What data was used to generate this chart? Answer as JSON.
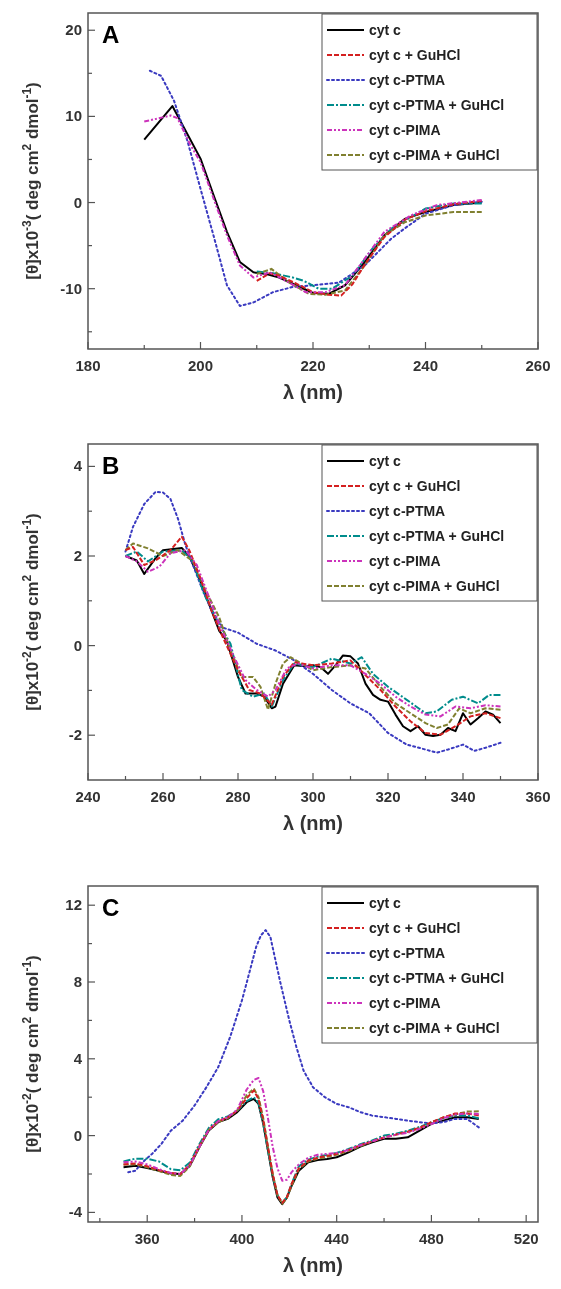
{
  "chart_data": [
    {
      "type": "line",
      "title": "A",
      "xlabel": "λ (nm)",
      "ylabel": "[θ]x10$^{-3}$( deg cm$^{2}$ dmol$^{-1}$)",
      "xlim": [
        180,
        260
      ],
      "ylim": [
        -17,
        22
      ],
      "xticks": [
        180,
        {
          "value": 190,
          "label": null
        },
        200,
        {
          "value": 210,
          "label": null
        },
        220,
        {
          "value": 230,
          "label": null
        },
        240,
        {
          "value": 250,
          "label": null
        },
        260
      ],
      "yticks": [
        {
          "value": -15,
          "label": null
        },
        -10,
        {
          "value": -5,
          "label": null
        },
        0,
        {
          "value": 5,
          "label": null
        },
        10,
        {
          "value": 15,
          "label": null
        },
        20
      ],
      "legend": "top right",
      "series": [
        {
          "name": "cyt c",
          "color": "#000000",
          "line_style": "solid",
          "x": [
            190,
            195,
            200,
            202.3,
            204.7,
            207,
            209.4,
            211.7,
            214,
            217,
            220,
            222.8,
            225.7,
            229.2,
            232.7,
            236.3,
            240,
            245,
            250
          ],
          "values": [
            7.3,
            11.2,
            5.1,
            0.9,
            -3.4,
            -6.9,
            -8.1,
            -8.3,
            -8.7,
            -9.6,
            -10.5,
            -10.6,
            -9.6,
            -6.9,
            -3.8,
            -1.9,
            -1.1,
            -0.3,
            0
          ]
        },
        {
          "name": "cyt c + GuHCl",
          "color": "#d42020",
          "line_style": "dashed",
          "x": [
            210,
            212.3,
            214,
            217,
            220,
            222.8,
            225,
            227,
            229.2,
            232.7,
            236.3,
            240,
            245,
            250
          ],
          "values": [
            -9.1,
            -8.2,
            -8.5,
            -9.4,
            -10.4,
            -10.7,
            -10.8,
            -9.5,
            -7.2,
            -4.0,
            -2.0,
            -1.0,
            -0.2,
            0.2
          ]
        },
        {
          "name": "cyt c-PTMA",
          "color": "#3a3ac0",
          "line_style": "dotted",
          "x": [
            191,
            193,
            195.3,
            197.7,
            200,
            202.3,
            204.7,
            207,
            209.4,
            212.9,
            216.4,
            220,
            224.6,
            229.2,
            233.9,
            236.3,
            240,
            245,
            250
          ],
          "values": [
            15.3,
            14.7,
            11.8,
            7.1,
            1.6,
            -3.8,
            -9.6,
            -12.0,
            -11.6,
            -10.4,
            -9.8,
            -9.6,
            -9.3,
            -7.3,
            -4.2,
            -3.0,
            -1.3,
            -0.3,
            0.1
          ]
        },
        {
          "name": "cyt c-PTMA + GuHCl",
          "color": "#008c8c",
          "line_style": "dashdot",
          "x": [
            210,
            212.9,
            216.4,
            218.4,
            221,
            223.4,
            227,
            230.5,
            234,
            240,
            245,
            250
          ],
          "values": [
            -8.0,
            -8.2,
            -8.7,
            -9.1,
            -10.0,
            -10.0,
            -8.5,
            -5.4,
            -3.0,
            -0.7,
            -0.1,
            -0.1
          ]
        },
        {
          "name": "cyt c-PIMA",
          "color": "#cc33bb",
          "line_style": "dashdotdot",
          "x": [
            190,
            194.7,
            195.9,
            198.2,
            200,
            202.3,
            204.7,
            207,
            209.4,
            212.3,
            215.2,
            218.7,
            222.2,
            225.7,
            229.2,
            232.7,
            237.4,
            242,
            250
          ],
          "values": [
            9.4,
            10.1,
            9.8,
            6.7,
            4.7,
            0.5,
            -3.8,
            -7.3,
            -8.7,
            -8.1,
            -9.1,
            -10.4,
            -10.4,
            -9.6,
            -6.5,
            -3.4,
            -1.5,
            -0.3,
            0.3
          ]
        },
        {
          "name": "cyt c-PIMA + GuHCl",
          "color": "#808030",
          "line_style": "dashed",
          "x": [
            210,
            212.6,
            215.8,
            219.3,
            222.2,
            225.7,
            229.2,
            232.7,
            236.3,
            240,
            245,
            250
          ],
          "values": [
            -8.3,
            -7.7,
            -9.3,
            -10.6,
            -10.7,
            -10.2,
            -7.3,
            -3.8,
            -2.3,
            -1.5,
            -1.1,
            -1.1
          ]
        }
      ]
    },
    {
      "type": "line",
      "title": "B",
      "xlabel": "λ (nm)",
      "ylabel": "[θ]x10$^{-2}$( deg cm$^{2}$ dmol$^{-1}$)",
      "xlim": [
        240,
        360
      ],
      "ylim": [
        -3,
        4.5
      ],
      "xticks": [
        240,
        {
          "value": 250,
          "label": null
        },
        260,
        {
          "value": 270,
          "label": null
        },
        280,
        {
          "value": 290,
          "label": null
        },
        300,
        {
          "value": 310,
          "label": null
        },
        320,
        {
          "value": 330,
          "label": null
        },
        340,
        {
          "value": 350,
          "label": null
        },
        360
      ],
      "yticks": [
        -2,
        {
          "value": -1,
          "label": null
        },
        0,
        {
          "value": 1,
          "label": null
        },
        2,
        {
          "value": 3,
          "label": null
        },
        4
      ],
      "legend": "top right",
      "series": [
        {
          "name": "cyt c",
          "color": "#000000",
          "line_style": "solid",
          "x": [
            250,
            253,
            255,
            258,
            260,
            265,
            267,
            270,
            273,
            275,
            277,
            280,
            282,
            285,
            287,
            289,
            290,
            292,
            295,
            298,
            300,
            302,
            304,
            306,
            308,
            310,
            312,
            314,
            316,
            318,
            320,
            322,
            324,
            326,
            328,
            330,
            332,
            334,
            336,
            338,
            340,
            342,
            344,
            346,
            348,
            350
          ],
          "values": [
            2.0,
            1.9,
            1.6,
            1.95,
            2.13,
            2.18,
            2.0,
            1.43,
            0.77,
            0.33,
            0.11,
            -0.7,
            -1.07,
            -1.07,
            -1.14,
            -1.4,
            -1.36,
            -0.85,
            -0.44,
            -0.46,
            -0.44,
            -0.48,
            -0.63,
            -0.44,
            -0.22,
            -0.24,
            -0.4,
            -0.85,
            -1.1,
            -1.21,
            -1.25,
            -1.54,
            -1.8,
            -1.91,
            -1.8,
            -1.99,
            -2.02,
            -1.99,
            -1.84,
            -1.91,
            -1.51,
            -1.76,
            -1.62,
            -1.47,
            -1.54,
            -1.73
          ]
        },
        {
          "name": "cyt c + GuHCl",
          "color": "#d42020",
          "line_style": "dashed",
          "x": [
            250,
            252,
            255,
            258,
            262,
            265,
            267,
            270,
            273,
            276,
            280,
            283,
            286,
            289,
            292,
            295,
            300,
            305,
            310,
            314,
            318,
            322,
            326,
            330,
            334,
            338,
            342,
            346,
            350
          ],
          "values": [
            2.13,
            2.2,
            1.8,
            1.9,
            2.13,
            2.43,
            2.13,
            1.5,
            0.77,
            0.18,
            -0.55,
            -0.99,
            -1.07,
            -1.32,
            -0.7,
            -0.37,
            -0.44,
            -0.4,
            -0.33,
            -0.66,
            -0.99,
            -1.36,
            -1.69,
            -1.95,
            -1.99,
            -1.8,
            -1.58,
            -1.51,
            -1.62
          ]
        },
        {
          "name": "cyt c-PTMA",
          "color": "#3a3ac0",
          "line_style": "dotted",
          "x": [
            250,
            252,
            255,
            258,
            260,
            262,
            264,
            266,
            268,
            270,
            273,
            276,
            280,
            285,
            290,
            295,
            300,
            305,
            310,
            315,
            320,
            325,
            330,
            333,
            336,
            340,
            343,
            346,
            350
          ],
          "values": [
            2.1,
            2.65,
            3.16,
            3.43,
            3.42,
            3.27,
            2.83,
            2.24,
            1.8,
            1.36,
            0.77,
            0.4,
            0.29,
            0.04,
            -0.11,
            -0.33,
            -0.63,
            -0.99,
            -1.29,
            -1.51,
            -1.95,
            -2.21,
            -2.32,
            -2.39,
            -2.32,
            -2.21,
            -2.35,
            -2.28,
            -2.17
          ]
        },
        {
          "name": "cyt c-PTMA + GuHCl",
          "color": "#008c8c",
          "line_style": "dashdot",
          "x": [
            250,
            253,
            256,
            260,
            265,
            268,
            271,
            275,
            278,
            281,
            284,
            287,
            289,
            292,
            295,
            300,
            305,
            310,
            313,
            316,
            320,
            325,
            330,
            333,
            337,
            340,
            344,
            347,
            350
          ],
          "values": [
            2.0,
            2.1,
            1.88,
            2.1,
            2.13,
            1.88,
            1.14,
            0.48,
            0.04,
            -0.99,
            -1.14,
            -1.07,
            -1.36,
            -0.77,
            -0.4,
            -0.48,
            -0.29,
            -0.4,
            -0.26,
            -0.63,
            -0.92,
            -1.21,
            -1.51,
            -1.47,
            -1.21,
            -1.14,
            -1.29,
            -1.1,
            -1.1
          ]
        },
        {
          "name": "cyt c-PIMA",
          "color": "#cc33bb",
          "line_style": "dashdotdot",
          "x": [
            250,
            253,
            256,
            259,
            262,
            266,
            269,
            272,
            275,
            279,
            282,
            285,
            288,
            290,
            293,
            296,
            300,
            305,
            310,
            314,
            318,
            322,
            326,
            330,
            334,
            338,
            342,
            346,
            350
          ],
          "values": [
            2.0,
            1.88,
            1.65,
            1.76,
            2.06,
            2.13,
            1.8,
            1.14,
            0.48,
            -0.26,
            -0.77,
            -0.99,
            -1.14,
            -0.99,
            -0.51,
            -0.4,
            -0.51,
            -0.44,
            -0.44,
            -0.63,
            -0.85,
            -1.14,
            -1.36,
            -1.54,
            -1.58,
            -1.36,
            -1.4,
            -1.33,
            -1.36
          ]
        },
        {
          "name": "cyt c-PIMA + GuHCl",
          "color": "#808030",
          "line_style": "dashed",
          "x": [
            250,
            252,
            256,
            260,
            264,
            268,
            271,
            275,
            278,
            281,
            284,
            286,
            288,
            290,
            292,
            294,
            297,
            300,
            305,
            310,
            314,
            318,
            322,
            326,
            330,
            333,
            336,
            339,
            342,
            346,
            350
          ],
          "values": [
            2.13,
            2.28,
            2.17,
            2.0,
            2.13,
            1.88,
            1.29,
            0.63,
            -0.11,
            -0.7,
            -0.7,
            -0.92,
            -1.43,
            -0.85,
            -0.4,
            -0.26,
            -0.4,
            -0.55,
            -0.48,
            -0.44,
            -0.51,
            -0.92,
            -1.29,
            -1.51,
            -1.73,
            -1.84,
            -1.76,
            -1.4,
            -1.51,
            -1.4,
            -1.43
          ]
        }
      ]
    },
    {
      "type": "line",
      "title": "C",
      "xlabel": "λ (nm)",
      "ylabel": "[θ]x10$^{-2}$( deg cm$^{2}$ dmol$^{-1}$)",
      "xlim": [
        335,
        525
      ],
      "ylim": [
        -4.5,
        13
      ],
      "xticks": [
        {
          "value": 340,
          "label": null
        },
        360,
        {
          "value": 380,
          "label": null
        },
        400,
        {
          "value": 420,
          "label": null
        },
        440,
        {
          "value": 460,
          "label": null
        },
        480,
        {
          "value": 500,
          "label": null
        },
        520
      ],
      "yticks": [
        -4,
        {
          "value": -2,
          "label": null
        },
        0,
        {
          "value": 2,
          "label": null
        },
        4,
        {
          "value": 6,
          "label": null
        },
        8,
        {
          "value": 10,
          "label": null
        },
        12
      ],
      "legend": "top right",
      "series": [
        {
          "name": "cyt c",
          "color": "#000000",
          "line_style": "solid",
          "x": [
            350,
            355,
            360,
            365,
            370,
            374,
            378,
            382,
            386,
            390,
            394,
            398,
            402,
            405,
            407,
            409,
            411,
            413,
            415,
            417,
            419,
            421,
            424,
            428,
            432,
            436,
            440,
            445,
            450,
            455,
            460,
            465,
            470,
            475,
            480,
            485,
            490,
            495,
            500
          ],
          "values": [
            -1.65,
            -1.57,
            -1.69,
            -1.83,
            -1.97,
            -2.0,
            -1.57,
            -0.61,
            0.26,
            0.7,
            0.87,
            1.22,
            1.74,
            1.91,
            1.65,
            0.61,
            -0.78,
            -2.17,
            -3.22,
            -3.57,
            -3.22,
            -2.61,
            -1.83,
            -1.39,
            -1.27,
            -1.22,
            -1.13,
            -0.87,
            -0.57,
            -0.35,
            -0.17,
            -0.17,
            -0.09,
            0.26,
            0.61,
            0.78,
            0.96,
            0.96,
            0.87
          ]
        },
        {
          "name": "cyt c + GuHCl",
          "color": "#d42020",
          "line_style": "dashed",
          "x": [
            350,
            355,
            360,
            365,
            370,
            374,
            378,
            382,
            386,
            390,
            394,
            398,
            402,
            405,
            407,
            409,
            411,
            413,
            415,
            417,
            419,
            421,
            424,
            428,
            432,
            436,
            440,
            445,
            450,
            455,
            460,
            465,
            470,
            475,
            480,
            485,
            490,
            495,
            500
          ],
          "values": [
            -1.5,
            -1.45,
            -1.6,
            -1.8,
            -1.95,
            -2.0,
            -1.5,
            -0.55,
            0.3,
            0.75,
            0.95,
            1.3,
            1.95,
            2.35,
            1.9,
            0.8,
            -0.6,
            -2.0,
            -3.1,
            -3.5,
            -3.2,
            -2.5,
            -1.7,
            -1.3,
            -1.15,
            -1.05,
            -0.95,
            -0.75,
            -0.5,
            -0.3,
            -0.1,
            0.05,
            0.2,
            0.4,
            0.7,
            0.95,
            1.15,
            1.15,
            1.05
          ]
        },
        {
          "name": "cyt c-PTMA",
          "color": "#3a3ac0",
          "line_style": "dotted",
          "x": [
            352,
            355,
            358,
            362,
            366,
            370,
            375,
            380,
            385,
            390,
            395,
            400,
            403,
            406,
            408,
            410,
            412,
            414,
            416,
            418,
            420,
            423,
            426,
            430,
            435,
            440,
            445,
            450,
            455,
            460,
            465,
            470,
            475,
            480,
            485,
            490,
            495,
            500
          ],
          "values": [
            -1.91,
            -1.83,
            -1.39,
            -0.96,
            -0.43,
            0.26,
            0.78,
            1.57,
            2.52,
            3.57,
            5.13,
            7.04,
            8.43,
            9.83,
            10.43,
            10.7,
            10.35,
            9.22,
            8.09,
            7.04,
            6.0,
            4.61,
            3.39,
            2.52,
            2.0,
            1.65,
            1.48,
            1.22,
            1.04,
            0.96,
            0.87,
            0.78,
            0.7,
            0.64,
            0.7,
            0.87,
            0.87,
            0.43
          ]
        },
        {
          "name": "cyt c-PTMA + GuHCl",
          "color": "#008c8c",
          "line_style": "dashdot",
          "x": [
            350,
            355,
            360,
            365,
            370,
            374,
            378,
            382,
            386,
            390,
            394,
            398,
            402,
            405,
            407,
            409,
            411,
            413,
            415,
            417,
            419,
            421,
            424,
            428,
            432,
            436,
            440,
            445,
            450,
            455,
            460,
            465,
            470,
            475,
            480,
            485,
            490,
            495,
            500
          ],
          "values": [
            -1.35,
            -1.2,
            -1.2,
            -1.35,
            -1.75,
            -1.8,
            -1.4,
            -0.45,
            0.4,
            0.85,
            1.0,
            1.3,
            1.8,
            2.0,
            1.7,
            0.6,
            -0.8,
            -2.1,
            -3.1,
            -3.5,
            -3.2,
            -2.5,
            -1.6,
            -1.25,
            -1.1,
            -1.0,
            -0.9,
            -0.7,
            -0.45,
            -0.25,
            0.0,
            0.1,
            0.25,
            0.45,
            0.7,
            0.9,
            1.05,
            1.05,
            0.9
          ]
        },
        {
          "name": "cyt c-PIMA",
          "color": "#cc33bb",
          "line_style": "dashdotdot",
          "x": [
            350,
            355,
            360,
            365,
            370,
            374,
            378,
            382,
            386,
            390,
            394,
            398,
            402,
            405,
            407,
            409,
            411,
            413,
            415,
            417,
            419,
            421,
            424,
            428,
            432,
            436,
            440,
            445,
            450,
            455,
            460,
            465,
            470,
            475,
            480,
            485,
            490,
            495,
            500
          ],
          "values": [
            -1.39,
            -1.35,
            -1.5,
            -1.75,
            -1.95,
            -2.0,
            -1.55,
            -0.6,
            0.3,
            0.75,
            0.95,
            1.35,
            2.4,
            2.9,
            3.0,
            2.3,
            0.9,
            -0.6,
            -1.7,
            -2.35,
            -2.3,
            -1.9,
            -1.5,
            -1.15,
            -1.0,
            -0.95,
            -0.9,
            -0.75,
            -0.5,
            -0.3,
            -0.1,
            0.05,
            0.15,
            0.35,
            0.6,
            0.9,
            1.1,
            1.15,
            1.13
          ]
        },
        {
          "name": "cyt c-PIMA + GuHCl",
          "color": "#808030",
          "line_style": "dashed",
          "x": [
            350,
            355,
            360,
            365,
            370,
            374,
            378,
            382,
            386,
            390,
            394,
            398,
            402,
            405,
            407,
            409,
            411,
            413,
            415,
            417,
            419,
            421,
            424,
            428,
            432,
            436,
            440,
            445,
            450,
            455,
            460,
            465,
            470,
            475,
            480,
            485,
            490,
            495,
            500
          ],
          "values": [
            -1.5,
            -1.5,
            -1.65,
            -1.85,
            -2.05,
            -2.1,
            -1.6,
            -0.6,
            0.3,
            0.7,
            0.9,
            1.3,
            2.1,
            2.45,
            2.0,
            0.9,
            -0.6,
            -2.0,
            -3.1,
            -3.55,
            -3.25,
            -2.6,
            -1.75,
            -1.35,
            -1.2,
            -1.1,
            -1.0,
            -0.8,
            -0.55,
            -0.3,
            -0.1,
            0.05,
            0.2,
            0.4,
            0.65,
            0.95,
            1.1,
            1.25,
            1.27
          ]
        }
      ]
    }
  ]
}
